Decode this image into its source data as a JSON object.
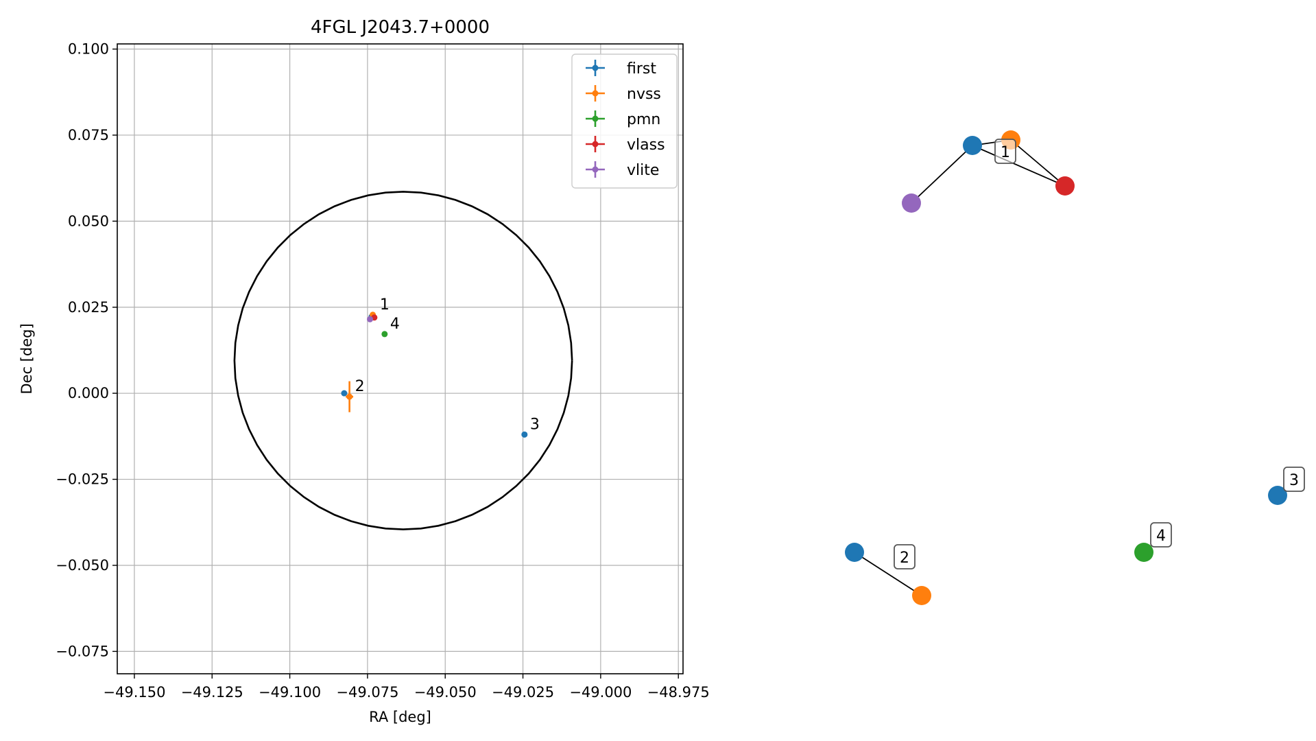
{
  "chart_data": [
    {
      "type": "scatter",
      "title": "4FGL J2043.7+0000",
      "xlabel": "RA [deg]",
      "ylabel": "Dec [deg]",
      "xlim": [
        -49.1555,
        -48.9735
      ],
      "ylim": [
        -0.0815,
        0.1015
      ],
      "xticks": [
        -49.15,
        -49.125,
        -49.1,
        -49.075,
        -49.05,
        -49.025,
        -49.0,
        -48.975
      ],
      "xtick_labels": [
        "−49.150",
        "−49.125",
        "−49.100",
        "−49.075",
        "−49.050",
        "−49.025",
        "−49.000",
        "−48.975"
      ],
      "yticks": [
        -0.075,
        -0.05,
        -0.025,
        0.0,
        0.025,
        0.05,
        0.075,
        0.1
      ],
      "ytick_labels": [
        "−0.075",
        "−0.050",
        "−0.025",
        "0.000",
        "0.025",
        "0.050",
        "0.075",
        "0.100"
      ],
      "grid": true,
      "legend_position": "top-right",
      "circle": {
        "ra": -49.0635,
        "dec": 0.0095,
        "radius": 0.0543
      },
      "series": [
        {
          "name": "first",
          "color": "#1f77b4",
          "points": [
            {
              "x": -49.0825,
              "y": 0.0,
              "xerr": 0.0,
              "yerr": 0.0
            },
            {
              "x": -49.0245,
              "y": -0.012,
              "xerr": 0.0,
              "yerr": 0.0
            },
            {
              "x": -49.0737,
              "y": 0.0222,
              "xerr": 0.0,
              "yerr": 0.0
            }
          ]
        },
        {
          "name": "nvss",
          "color": "#ff7f0e",
          "points": [
            {
              "x": -49.0808,
              "y": -0.001,
              "xerr": 0.0012,
              "yerr": 0.0045
            },
            {
              "x": -49.0733,
              "y": 0.0228,
              "xerr": 0.0,
              "yerr": 0.0
            }
          ]
        },
        {
          "name": "pmn",
          "color": "#2ca02c",
          "points": [
            {
              "x": -49.0695,
              "y": 0.0172,
              "xerr": 0.0,
              "yerr": 0.0
            }
          ]
        },
        {
          "name": "vlass",
          "color": "#d62728",
          "points": [
            {
              "x": -49.0728,
              "y": 0.022,
              "xerr": 0.0,
              "yerr": 0.0
            }
          ]
        },
        {
          "name": "vlite",
          "color": "#9467bd",
          "points": [
            {
              "x": -49.0742,
              "y": 0.0215,
              "xerr": 0.0,
              "yerr": 0.0
            }
          ]
        }
      ],
      "annotations": [
        {
          "text": "1",
          "x": -49.0728,
          "y": 0.0228
        },
        {
          "text": "4",
          "x": -49.0695,
          "y": 0.0172
        },
        {
          "text": "2",
          "x": -49.0808,
          "y": -0.001
        },
        {
          "text": "3",
          "x": -49.0245,
          "y": -0.012
        }
      ]
    },
    {
      "type": "network",
      "nodes": [
        {
          "id": "first-1",
          "color": "#1f77b4"
        },
        {
          "id": "nvss-1",
          "color": "#ff7f0e"
        },
        {
          "id": "vlass-1",
          "color": "#d62728"
        },
        {
          "id": "vlite-1",
          "color": "#9467bd"
        },
        {
          "id": "first-2",
          "color": "#1f77b4"
        },
        {
          "id": "nvss-2",
          "color": "#ff7f0e"
        },
        {
          "id": "pmn-4",
          "color": "#2ca02c"
        },
        {
          "id": "first-3",
          "color": "#1f77b4"
        }
      ],
      "edges": [
        [
          "first-1",
          "nvss-1"
        ],
        [
          "first-1",
          "vlass-1"
        ],
        [
          "first-1",
          "vlite-1"
        ],
        [
          "nvss-1",
          "vlass-1"
        ],
        [
          "first-2",
          "nvss-2"
        ]
      ],
      "group_labels": [
        "1",
        "2",
        "3",
        "4"
      ]
    }
  ]
}
